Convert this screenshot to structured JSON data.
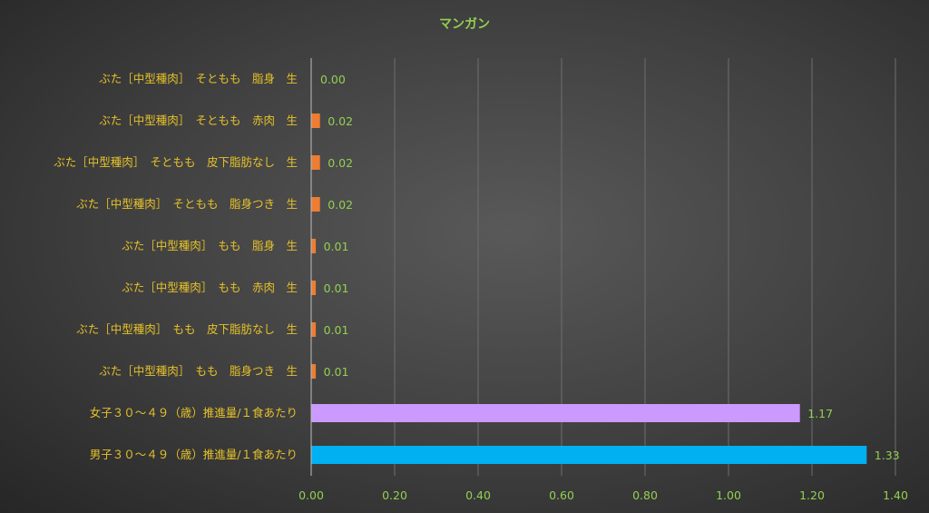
{
  "chart_data": {
    "type": "bar",
    "orientation": "horizontal",
    "title": "マンガン",
    "xlim": [
      0,
      1.4
    ],
    "x_ticks": [
      "0.00",
      "0.20",
      "0.40",
      "0.60",
      "0.80",
      "1.00",
      "1.20",
      "1.40"
    ],
    "grid": true,
    "legend": "none",
    "categories": [
      "ぶた［中型種肉］　そともも　脂身　生",
      "ぶた［中型種肉］　そともも　赤肉　生",
      "ぶた［中型種肉］　そともも　皮下脂肪なし　生",
      "ぶた［中型種肉］　そともも　脂身つき　生",
      "ぶた［中型種肉］　もも　脂身　生",
      "ぶた［中型種肉］　もも　赤肉　生",
      "ぶた［中型種肉］　もも　皮下脂肪なし　生",
      "ぶた［中型種肉］　もも　脂身つき　生",
      "女子３０～４９（歳）推進量/１食あたり",
      "男子３０～４９（歳）推進量/１食あたり"
    ],
    "values": [
      0.0,
      0.02,
      0.02,
      0.02,
      0.01,
      0.01,
      0.01,
      0.01,
      1.17,
      1.33
    ],
    "value_labels": [
      "0.00",
      "0.02",
      "0.02",
      "0.02",
      "0.01",
      "0.01",
      "0.01",
      "0.01",
      "1.17",
      "1.33"
    ],
    "colors": [
      "#ed7d31",
      "#ed7d31",
      "#ed7d31",
      "#ed7d31",
      "#ed7d31",
      "#ed7d31",
      "#ed7d31",
      "#ed7d31",
      "#cc99ff",
      "#00b0f0"
    ]
  }
}
